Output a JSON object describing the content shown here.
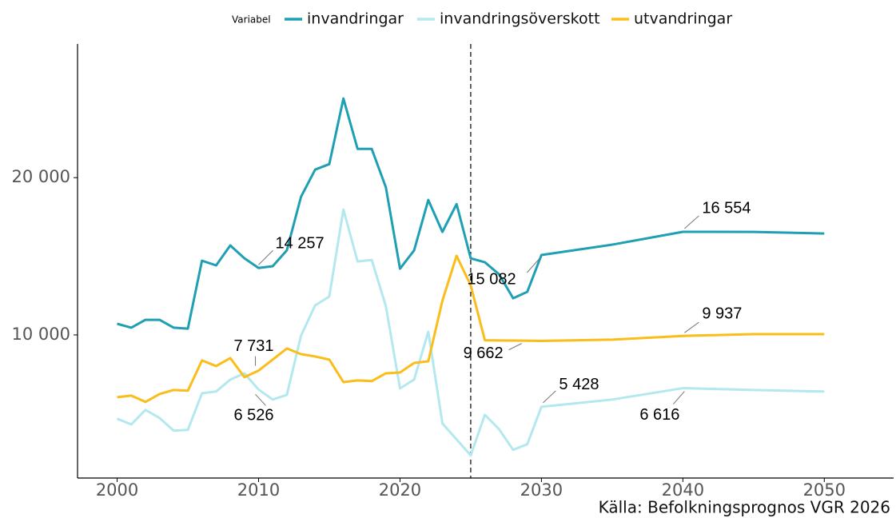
{
  "chart_data": {
    "type": "line",
    "legend_title": "Variabel",
    "caption": "Källa: Befolkningsprognos VGR 2026",
    "x": [
      2000,
      2001,
      2002,
      2003,
      2004,
      2005,
      2006,
      2007,
      2008,
      2009,
      2010,
      2011,
      2012,
      2013,
      2014,
      2015,
      2016,
      2017,
      2018,
      2019,
      2020,
      2021,
      2022,
      2023,
      2024,
      2025,
      2026,
      2027,
      2028,
      2029,
      2030,
      2035,
      2040,
      2045,
      2050
    ],
    "series": [
      {
        "name": "invandringar",
        "color": "#1f9fb4",
        "values": [
          10710,
          10460,
          10960,
          10960,
          10460,
          10400,
          14720,
          14420,
          15690,
          14870,
          14257,
          14370,
          15380,
          18780,
          20510,
          20860,
          25030,
          21830,
          21830,
          19390,
          14210,
          15380,
          18580,
          16550,
          18320,
          14870,
          14620,
          13860,
          12330,
          12740,
          15082,
          15740,
          16554,
          16550,
          16450
        ]
      },
      {
        "name": "invandringsöverskott",
        "color": "#b3e8ef",
        "values": [
          4670,
          4310,
          5230,
          4720,
          3910,
          3960,
          6290,
          6400,
          7160,
          7560,
          6526,
          5890,
          6190,
          9950,
          11880,
          12440,
          17970,
          14670,
          14770,
          11830,
          6600,
          7160,
          10200,
          4370,
          3350,
          2340,
          4920,
          4010,
          2690,
          3050,
          5428,
          5890,
          6616,
          6500,
          6400
        ]
      },
      {
        "name": "utvandringar",
        "color": "#fbbd1a",
        "values": [
          6040,
          6140,
          5740,
          6240,
          6500,
          6450,
          8380,
          8020,
          8530,
          7310,
          7731,
          8430,
          9140,
          8780,
          8630,
          8430,
          7000,
          7110,
          7060,
          7560,
          7610,
          8220,
          8320,
          12180,
          15030,
          13150,
          9662,
          9650,
          9640,
          9630,
          9620,
          9700,
          9937,
          10050,
          10050
        ]
      }
    ],
    "annotations": [
      {
        "x": 2010,
        "value": 14257,
        "label": "14 257"
      },
      {
        "x": 2010,
        "value": 7731,
        "label": "7 731"
      },
      {
        "x": 2010,
        "value": 6526,
        "label": "6 526"
      },
      {
        "x": 2030,
        "value": 15082,
        "label": "15 082"
      },
      {
        "x": 2040,
        "value": 16554,
        "label": "16 554"
      },
      {
        "x": 2040,
        "value": 9937,
        "label": "9 937"
      },
      {
        "x": 2026,
        "value": 9662,
        "label": "9 662"
      },
      {
        "x": 2030,
        "value": 5428,
        "label": "5 428"
      },
      {
        "x": 2040,
        "value": 6616,
        "label": "6 616"
      }
    ],
    "vline": 2025,
    "xlim": [
      1997.2,
      2054.9
    ],
    "ylim": [
      900,
      28500
    ],
    "xticks": [
      2000,
      2010,
      2020,
      2030,
      2040,
      2050
    ],
    "yticks": [
      {
        "value": 10000,
        "label": "10 000"
      },
      {
        "value": 20000,
        "label": "20 000"
      }
    ]
  }
}
